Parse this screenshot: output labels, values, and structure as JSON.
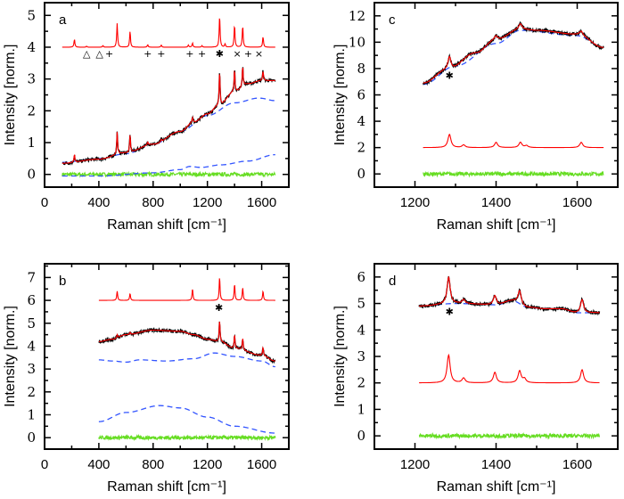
{
  "chart_data": [
    {
      "panel": "a",
      "type": "line",
      "xlabel": "Raman shift [cm⁻¹]",
      "ylabel": "Intensity [norm.]",
      "xlim": [
        0,
        1800
      ],
      "ylim": [
        -0.4,
        5.4
      ],
      "xticks": [
        0,
        400,
        800,
        1200,
        1600
      ],
      "yticks": [
        0,
        1,
        2,
        3,
        4,
        5
      ],
      "xrange": [
        130,
        1700
      ],
      "colors": {
        "measured": "#000000",
        "fit": "#ff0000",
        "reference": "#ff0000",
        "baseline": "#3355ff",
        "residual": "#66dd22"
      },
      "fit_background": [
        [
          130,
          0.35
        ],
        [
          400,
          0.48
        ],
        [
          600,
          0.68
        ],
        [
          800,
          0.95
        ],
        [
          1000,
          1.35
        ],
        [
          1100,
          1.65
        ],
        [
          1200,
          1.9
        ],
        [
          1280,
          2.15
        ],
        [
          1400,
          2.6
        ],
        [
          1500,
          2.85
        ],
        [
          1600,
          2.95
        ],
        [
          1700,
          2.95
        ]
      ],
      "fit_peaks": [
        [
          220,
          0.25
        ],
        [
          535,
          0.7
        ],
        [
          630,
          0.55
        ],
        [
          760,
          0.1
        ],
        [
          860,
          0.08
        ],
        [
          1090,
          0.15
        ],
        [
          1290,
          1.1
        ],
        [
          1400,
          0.7
        ],
        [
          1460,
          0.65
        ],
        [
          1610,
          0.3
        ]
      ],
      "baselines": [
        [
          [
            130,
            0.38
          ],
          [
            400,
            0.5
          ],
          [
            600,
            0.65
          ],
          [
            800,
            0.95
          ],
          [
            1000,
            1.35
          ],
          [
            1200,
            1.85
          ],
          [
            1400,
            2.25
          ],
          [
            1580,
            2.4
          ],
          [
            1700,
            2.32
          ]
        ],
        [
          [
            130,
            -0.05
          ],
          [
            400,
            -0.05
          ],
          [
            800,
            0.05
          ],
          [
            1000,
            0.15
          ],
          [
            1070,
            0.25
          ],
          [
            1150,
            0.22
          ],
          [
            1300,
            0.3
          ],
          [
            1500,
            0.42
          ],
          [
            1700,
            0.62
          ]
        ]
      ],
      "reference_offset": 4,
      "reference_peaks": [
        [
          220,
          0.25
        ],
        [
          310,
          0.03
        ],
        [
          430,
          0.05
        ],
        [
          535,
          0.75
        ],
        [
          630,
          0.5
        ],
        [
          760,
          0.08
        ],
        [
          860,
          0.07
        ],
        [
          1060,
          0.07
        ],
        [
          1090,
          0.13
        ],
        [
          1160,
          0.05
        ],
        [
          1290,
          1.0
        ],
        [
          1330,
          0.1
        ],
        [
          1400,
          0.7
        ],
        [
          1460,
          0.68
        ],
        [
          1610,
          0.33
        ]
      ],
      "residual_level": 0,
      "markers": [
        {
          "symbol": "△",
          "x": 310,
          "y": 3.8
        },
        {
          "symbol": "△",
          "x": 405,
          "y": 3.8
        },
        {
          "symbol": "+",
          "x": 440,
          "y": 3.8
        },
        {
          "symbol": "+",
          "x": 760,
          "y": 3.8
        },
        {
          "symbol": "+",
          "x": 860,
          "y": 3.8
        },
        {
          "symbol": "+",
          "x": 1070,
          "y": 3.8
        },
        {
          "symbol": "+",
          "x": 1160,
          "y": 3.8
        },
        {
          "symbol": "✱",
          "x": 1290,
          "y": 3.8
        },
        {
          "symbol": "×",
          "x": 1420,
          "y": 3.8
        },
        {
          "symbol": "+",
          "x": 1500,
          "y": 3.8
        },
        {
          "symbol": "×",
          "x": 1580,
          "y": 3.8
        }
      ]
    },
    {
      "panel": "c",
      "type": "line",
      "xlabel": "Raman shift [cm⁻¹]",
      "ylabel": "Intensity [norm.]",
      "xlim": [
        1100,
        1700
      ],
      "ylim": [
        -1,
        13
      ],
      "xticks": [
        1200,
        1400,
        1600
      ],
      "yticks": [
        0,
        2,
        4,
        6,
        8,
        10,
        12
      ],
      "xrange": [
        1220,
        1665
      ],
      "colors": {
        "measured": "#000000",
        "fit": "#ff0000",
        "reference": "#ff0000",
        "baseline": "#3355ff",
        "residual": "#66dd22"
      },
      "fit_background": [
        [
          1220,
          6.9
        ],
        [
          1280,
          7.9
        ],
        [
          1350,
          9.2
        ],
        [
          1400,
          10.2
        ],
        [
          1460,
          11.0
        ],
        [
          1500,
          10.9
        ],
        [
          1600,
          10.6
        ],
        [
          1665,
          9.6
        ]
      ],
      "fit_peaks": [
        [
          1285,
          1.0
        ],
        [
          1400,
          0.3
        ],
        [
          1460,
          0.4
        ],
        [
          1610,
          0.3
        ]
      ],
      "baselines": [
        [
          [
            1220,
            6.8
          ],
          [
            1300,
            8.2
          ],
          [
            1400,
            9.9
          ],
          [
            1460,
            10.9
          ],
          [
            1600,
            10.5
          ],
          [
            1665,
            9.6
          ]
        ]
      ],
      "reference_offset": 2,
      "reference_peaks": [
        [
          1285,
          1.0
        ],
        [
          1320,
          0.2
        ],
        [
          1400,
          0.4
        ],
        [
          1460,
          0.4
        ],
        [
          1475,
          0.15
        ],
        [
          1610,
          0.4
        ]
      ],
      "residual_level": 0,
      "markers": [
        {
          "symbol": "✱",
          "x": 1285,
          "y": 7.5
        }
      ]
    },
    {
      "panel": "b",
      "type": "line",
      "xlabel": "Raman shift [cm⁻¹]",
      "ylabel": "Intensity [norm.]",
      "xlim": [
        0,
        1800
      ],
      "ylim": [
        -0.5,
        7.6
      ],
      "xticks": [
        0,
        400,
        800,
        1200,
        1600
      ],
      "yticks": [
        0,
        1,
        2,
        3,
        4,
        5,
        6,
        7
      ],
      "xrange": [
        400,
        1700
      ],
      "colors": {
        "measured": "#000000",
        "fit": "#ff0000",
        "reference": "#ff0000",
        "baseline": "#3355ff",
        "residual": "#66dd22"
      },
      "fit_background": [
        [
          400,
          4.2
        ],
        [
          500,
          4.3
        ],
        [
          600,
          4.5
        ],
        [
          800,
          4.7
        ],
        [
          1000,
          4.65
        ],
        [
          1100,
          4.5
        ],
        [
          1200,
          4.3
        ],
        [
          1290,
          4.2
        ],
        [
          1400,
          3.9
        ],
        [
          1600,
          3.6
        ],
        [
          1700,
          3.35
        ]
      ],
      "fit_peaks": [
        [
          535,
          0.15
        ],
        [
          630,
          0.1
        ],
        [
          1290,
          0.9
        ],
        [
          1400,
          0.6
        ],
        [
          1460,
          0.5
        ],
        [
          1610,
          0.35
        ]
      ],
      "baselines": [
        [
          [
            400,
            3.4
          ],
          [
            500,
            3.35
          ],
          [
            600,
            3.3
          ],
          [
            700,
            3.4
          ],
          [
            900,
            3.35
          ],
          [
            1100,
            3.45
          ],
          [
            1250,
            3.7
          ],
          [
            1400,
            3.55
          ],
          [
            1600,
            3.35
          ],
          [
            1700,
            3.1
          ]
        ],
        [
          [
            400,
            0.7
          ],
          [
            600,
            1.1
          ],
          [
            850,
            1.4
          ],
          [
            1000,
            1.3
          ],
          [
            1200,
            0.9
          ],
          [
            1400,
            0.5
          ],
          [
            1700,
            0.2
          ]
        ]
      ],
      "reference_offset": 6,
      "reference_peaks": [
        [
          535,
          0.4
        ],
        [
          630,
          0.3
        ],
        [
          1090,
          0.5
        ],
        [
          1290,
          1.0
        ],
        [
          1400,
          0.7
        ],
        [
          1460,
          0.55
        ],
        [
          1610,
          0.4
        ]
      ],
      "residual_level": 0,
      "markers": [
        {
          "symbol": "✱",
          "x": 1285,
          "y": 5.7
        }
      ]
    },
    {
      "panel": "d",
      "type": "line",
      "xlabel": "Raman shift [cm⁻¹]",
      "ylabel": "Intensity [norm.]",
      "xlim": [
        1100,
        1700
      ],
      "ylim": [
        -0.5,
        6.5
      ],
      "xticks": [
        1200,
        1400,
        1600
      ],
      "yticks": [
        0,
        1,
        2,
        3,
        4,
        5,
        6
      ],
      "xrange": [
        1210,
        1655
      ],
      "colors": {
        "measured": "#000000",
        "fit": "#ff0000",
        "reference": "#ff0000",
        "baseline": "#3355ff",
        "residual": "#66dd22"
      },
      "fit_background": [
        [
          1210,
          4.9
        ],
        [
          1300,
          5.0
        ],
        [
          1400,
          4.95
        ],
        [
          1440,
          5.1
        ],
        [
          1480,
          4.85
        ],
        [
          1520,
          4.8
        ],
        [
          1560,
          4.8
        ],
        [
          1600,
          4.65
        ],
        [
          1655,
          4.65
        ]
      ],
      "fit_peaks": [
        [
          1283,
          1.0
        ],
        [
          1320,
          0.15
        ],
        [
          1397,
          0.35
        ],
        [
          1458,
          0.5
        ],
        [
          1612,
          0.5
        ]
      ],
      "baselines": [
        [
          [
            1210,
            4.9
          ],
          [
            1300,
            5.0
          ],
          [
            1400,
            4.95
          ],
          [
            1440,
            5.1
          ],
          [
            1480,
            4.85
          ],
          [
            1520,
            4.8
          ],
          [
            1560,
            4.8
          ],
          [
            1600,
            4.65
          ],
          [
            1655,
            4.65
          ]
        ]
      ],
      "reference_offset": 2,
      "reference_peaks": [
        [
          1283,
          1.05
        ],
        [
          1320,
          0.18
        ],
        [
          1397,
          0.4
        ],
        [
          1458,
          0.45
        ],
        [
          1470,
          0.15
        ],
        [
          1612,
          0.5
        ]
      ],
      "residual_level": 0,
      "markers": [
        {
          "symbol": "✱",
          "x": 1285,
          "y": 4.7
        }
      ]
    }
  ]
}
